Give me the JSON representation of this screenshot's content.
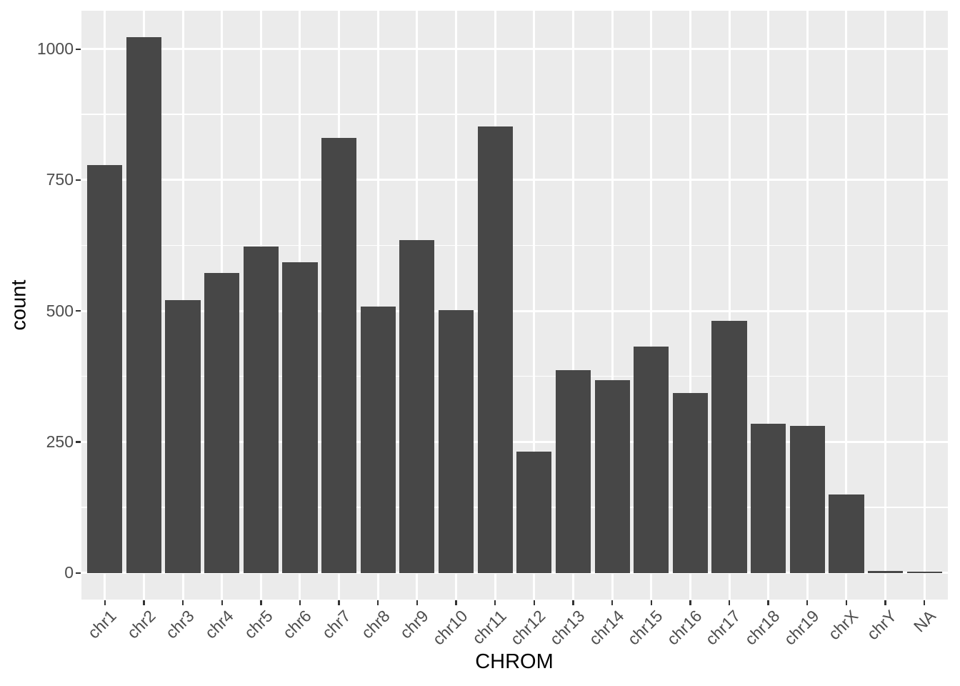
{
  "chart_data": {
    "type": "bar",
    "title": "",
    "xlabel": "CHROM",
    "ylabel": "count",
    "categories": [
      "chr1",
      "chr2",
      "chr3",
      "chr4",
      "chr5",
      "chr6",
      "chr7",
      "chr8",
      "chr9",
      "chr10",
      "chr11",
      "chr12",
      "chr13",
      "chr14",
      "chr15",
      "chr16",
      "chr17",
      "chr18",
      "chr19",
      "chrX",
      "chrY",
      "NA"
    ],
    "values": [
      778,
      1022,
      520,
      572,
      623,
      593,
      830,
      508,
      635,
      502,
      852,
      232,
      387,
      368,
      432,
      343,
      481,
      285,
      280,
      149,
      4,
      2
    ],
    "y_ticks": [
      0,
      250,
      500,
      750,
      1000
    ],
    "y_minor_ticks": [
      125,
      375,
      625,
      875
    ],
    "y_range_expanded": [
      -51,
      1073
    ],
    "x_range_units": [
      0.4,
      22.6
    ],
    "bar_width_units": 0.9,
    "grid": true,
    "legend_position": "none",
    "colors": {
      "bar_fill": "#474747",
      "panel_bg": "#EBEBEB",
      "grid_major": "#FFFFFF",
      "grid_minor": "#FFFFFF",
      "tick_mark": "#333333",
      "tick_label": "#4D4D4D",
      "axis_title": "#000000",
      "outer_bg": "#FFFFFF"
    }
  }
}
